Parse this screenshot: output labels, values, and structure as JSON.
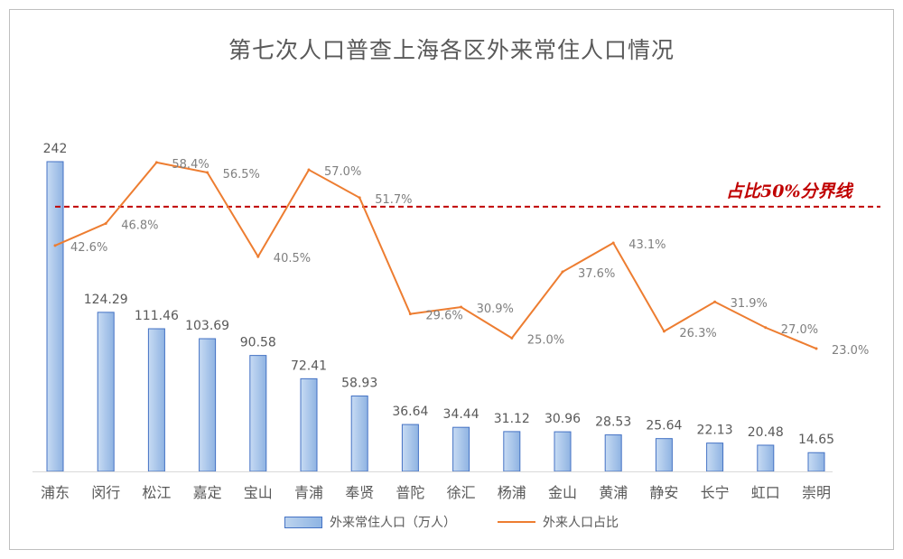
{
  "chart_data": {
    "type": "bar+line",
    "title": "第七次人口普查上海各区外来常住人口情况",
    "categories": [
      "浦东",
      "闵行",
      "松江",
      "嘉定",
      "宝山",
      "青浦",
      "奉贤",
      "普陀",
      "徐汇",
      "杨浦",
      "金山",
      "黄浦",
      "静安",
      "长宁",
      "虹口",
      "崇明"
    ],
    "series": [
      {
        "name": "外来常住人口（万人）",
        "type": "bar",
        "values": [
          242,
          124.29,
          111.46,
          103.69,
          90.58,
          72.41,
          58.93,
          36.64,
          34.44,
          31.12,
          30.96,
          28.53,
          25.64,
          22.13,
          20.48,
          14.65
        ],
        "labels": [
          "242",
          "124.29",
          "111.46",
          "103.69",
          "90.58",
          "72.41",
          "58.93",
          "36.64",
          "34.44",
          "31.12",
          "30.96",
          "28.53",
          "25.64",
          "22.13",
          "20.48",
          "14.65"
        ]
      },
      {
        "name": "外来人口占比",
        "type": "line",
        "values": [
          42.6,
          46.8,
          58.4,
          56.5,
          40.5,
          57.0,
          51.7,
          29.6,
          30.9,
          25.0,
          37.6,
          43.1,
          26.3,
          31.9,
          27.0,
          23.0
        ],
        "labels": [
          "42.6%",
          "46.8%",
          "58.4%",
          "56.5%",
          "40.5%",
          "57.0%",
          "51.7%",
          "29.6%",
          "30.9%",
          "25.0%",
          "37.6%",
          "43.1%",
          "26.3%",
          "31.9%",
          "27.0%",
          "23.0%"
        ]
      }
    ],
    "reference_line": {
      "value": 50,
      "label": "占比50%分界线"
    },
    "bar_axis_range": [
      0,
      242
    ],
    "line_axis_range": [
      0,
      68
    ],
    "legend_position": "bottom-center",
    "colors": {
      "bar_fill": "#a9c5eb",
      "bar_stroke": "#4472c4",
      "line": "#ed7d31",
      "reference": "#c00000"
    }
  }
}
